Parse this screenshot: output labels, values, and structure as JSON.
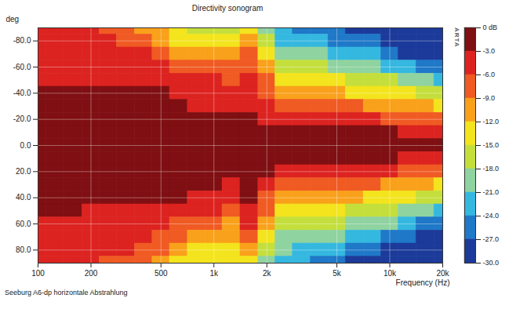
{
  "chart_data": {
    "type": "heatmap",
    "title": "Directivity sonogram",
    "x_label": "Frequency (Hz)",
    "y_label": "deg",
    "log": "x",
    "grid": true,
    "xlim": [
      100,
      20000
    ],
    "xticks": [
      100,
      200,
      500,
      {
        "value": 1000,
        "label": "1k"
      },
      {
        "value": 2000,
        "label": "2k"
      },
      {
        "value": 5000,
        "label": "5k"
      },
      {
        "value": 10000,
        "label": "10k"
      },
      {
        "value": 20000,
        "label": "20k"
      }
    ],
    "ylim": [
      -90,
      90
    ],
    "yticks": [
      {
        "value": -80,
        "label": "-80.0"
      },
      {
        "value": -60,
        "label": "-60.0"
      },
      {
        "value": -40,
        "label": "-40.0"
      },
      {
        "value": -20,
        "label": "-20.0"
      },
      {
        "value": 0,
        "label": "0.0"
      },
      {
        "value": 20,
        "label": "20.0"
      },
      {
        "value": 40,
        "label": "40.0"
      },
      {
        "value": 60,
        "label": "60.0"
      },
      {
        "value": 80,
        "label": "80.0"
      }
    ],
    "x": [
      100,
      125,
      160,
      200,
      250,
      315,
      400,
      500,
      630,
      800,
      1000,
      1250,
      1600,
      2000,
      2500,
      3150,
      4000,
      5000,
      6300,
      8000,
      10000,
      12500,
      16000,
      20000
    ],
    "y": [
      -90,
      -80,
      -70,
      -60,
      -50,
      -40,
      -30,
      -20,
      -10,
      0,
      10,
      20,
      30,
      40,
      50,
      60,
      70,
      80,
      90
    ],
    "cells": [
      [
        -5.5,
        -5.5,
        -5.5,
        -5.5,
        -6.5,
        -7,
        -9.5,
        -11,
        -13,
        -15.5,
        -16,
        -16.5,
        -12.5,
        -19,
        -22,
        -24,
        -25,
        -26,
        -27.5,
        -28.5,
        -29.5,
        -30,
        -30,
        -30
      ],
      [
        -5,
        -5,
        -5,
        -5,
        -5.5,
        -6.5,
        -7,
        -9.5,
        -12.5,
        -13,
        -13.5,
        -13.5,
        -9.5,
        -16,
        -21,
        -22,
        -23,
        -24,
        -25.5,
        -26.5,
        -28,
        -29.5,
        -30,
        -30
      ],
      [
        -4.5,
        -4.5,
        -4.5,
        -4.5,
        -5,
        -5,
        -5.5,
        -7,
        -9.5,
        -10.5,
        -10,
        -11,
        -7,
        -13,
        -18.5,
        -19.5,
        -20,
        -21,
        -22.5,
        -23.5,
        -25,
        -27,
        -28.5,
        -29.5
      ],
      [
        -4,
        -4,
        -4,
        -4,
        -4.5,
        -4.5,
        -5,
        -5.5,
        -6.5,
        -7.5,
        -7,
        -8,
        -6,
        -10,
        -15.5,
        -16.5,
        -17,
        -18,
        -19,
        -20,
        -21,
        -23,
        -25,
        -26.5
      ],
      [
        -3.5,
        -3.5,
        -3.5,
        -3.5,
        -4,
        -4,
        -4,
        -4.5,
        -5,
        -5.5,
        -5.5,
        -6,
        -5,
        -8,
        -12.5,
        -13,
        -13.5,
        -14,
        -15.5,
        -16,
        -17,
        -19,
        -20.5,
        -22
      ],
      [
        -2.5,
        -2.5,
        -2.5,
        -2.5,
        -2.5,
        -2.5,
        -2.5,
        -2.8,
        -4,
        -4.5,
        -4.5,
        -5,
        -4.5,
        -6,
        -9.5,
        -10,
        -10,
        -11,
        -12,
        -12.5,
        -13,
        -14.5,
        -16,
        -17.5
      ],
      [
        -1.5,
        -1.5,
        -1.5,
        -1.5,
        -1.5,
        -1.5,
        -1.5,
        -2,
        -2.5,
        -3.5,
        -3.5,
        -4,
        -3.5,
        -5,
        -6.5,
        -7,
        -7,
        -7.5,
        -8.5,
        -9,
        -9.5,
        -10.5,
        -11.5,
        -12.5
      ],
      [
        -1,
        -1,
        -1,
        -1,
        -1,
        -1,
        -1,
        -1,
        -1.5,
        -2,
        -2,
        -2.5,
        -2,
        -3.5,
        -4,
        -4.5,
        -4.5,
        -5,
        -5.5,
        -5.5,
        -6,
        -6.5,
        -7,
        -8
      ],
      [
        -0.5,
        -0.5,
        -0.5,
        -0.5,
        -0.5,
        -0.5,
        -0.5,
        -0.5,
        -0.5,
        -1,
        -1,
        -1,
        -1,
        -1.5,
        -2,
        -2,
        -2,
        -2.5,
        -2.5,
        -2.5,
        -2.5,
        -3,
        -3,
        -3.5
      ],
      [
        0,
        0,
        0,
        0,
        0,
        0,
        0,
        0,
        0,
        0,
        0,
        0,
        0,
        0,
        0,
        0,
        0,
        0,
        0,
        0,
        0,
        0,
        0,
        0
      ],
      [
        -0.5,
        -0.5,
        -0.5,
        -0.5,
        -0.5,
        -0.5,
        -0.5,
        -0.5,
        -0.5,
        -0.5,
        -0.5,
        -1,
        -0.5,
        -1,
        -2,
        -2,
        -2,
        -2.5,
        -2.5,
        -2.5,
        -2.5,
        -3,
        -3,
        -3.5
      ],
      [
        -1,
        -1,
        -1,
        -1,
        -1,
        -1,
        -1,
        -1,
        -1,
        -1.5,
        -1.5,
        -2,
        -1,
        -2.5,
        -4,
        -4,
        -4.5,
        -5,
        -5,
        -5.5,
        -5.5,
        -6.5,
        -7,
        -7.5
      ],
      [
        -1.5,
        -1.5,
        -1.5,
        -1.5,
        -1.5,
        -1.5,
        -1.5,
        -1.5,
        -2,
        -2.5,
        -2.5,
        -3.5,
        -2,
        -4.5,
        -6.5,
        -7,
        -7,
        -7.5,
        -8,
        -8.5,
        -9,
        -10,
        -11,
        -12
      ],
      [
        -2,
        -2,
        -2,
        -2,
        -2.5,
        -2.5,
        -2.5,
        -2.5,
        -2.8,
        -4,
        -4,
        -5,
        -2.5,
        -6,
        -9.5,
        -10,
        -10,
        -10.5,
        -11.5,
        -12,
        -12.5,
        -14,
        -15.5,
        -17
      ],
      [
        -2.5,
        -2.5,
        -2.5,
        -3,
        -3.5,
        -3.5,
        -4,
        -4,
        -4.5,
        -5,
        -5.5,
        -6.5,
        -3,
        -8,
        -12.5,
        -13,
        -13.5,
        -14,
        -15,
        -15.5,
        -16.5,
        -18.5,
        -20,
        -21.5
      ],
      [
        -3.5,
        -3.5,
        -3.5,
        -4,
        -4.5,
        -4.5,
        -4.5,
        -5,
        -6,
        -7,
        -7.5,
        -9,
        -4.5,
        -11,
        -15.5,
        -16,
        -16.5,
        -17.5,
        -18.5,
        -19.5,
        -20.5,
        -22.5,
        -24.5,
        -26
      ],
      [
        -4,
        -4,
        -4,
        -4.5,
        -5,
        -5,
        -5.5,
        -6.5,
        -8,
        -9.5,
        -10,
        -11,
        -7,
        -14,
        -18,
        -19,
        -19.5,
        -20.5,
        -22,
        -23,
        -24.5,
        -26.5,
        -28,
        -29
      ],
      [
        -4.5,
        -4.5,
        -4.5,
        -5,
        -5.5,
        -5.5,
        -6.5,
        -7.5,
        -10,
        -12.5,
        -12.5,
        -13,
        -10.5,
        -17,
        -20,
        -21.5,
        -22,
        -23,
        -25,
        -26,
        -27.5,
        -29,
        -30,
        -30
      ],
      [
        -5,
        -5,
        -5,
        -5.5,
        -6,
        -6.5,
        -7,
        -9.5,
        -12.5,
        -13.5,
        -13.5,
        -14,
        -13,
        -19,
        -22,
        -23,
        -24,
        -25,
        -27,
        -28,
        -29,
        -30,
        -30,
        -30
      ]
    ],
    "colorbar": {
      "range": [
        -30,
        0
      ],
      "ticks": [
        {
          "value": 0,
          "label": "0 dB"
        },
        {
          "value": -3,
          "label": "-3.0"
        },
        {
          "value": -6,
          "label": "-6.0"
        },
        {
          "value": -9,
          "label": "-9.0"
        },
        {
          "value": -12,
          "label": "-12.0"
        },
        {
          "value": -15,
          "label": "-15.0"
        },
        {
          "value": -18,
          "label": "-18.0"
        },
        {
          "value": -21,
          "label": "-21.0"
        },
        {
          "value": -24,
          "label": "-24.0"
        },
        {
          "value": -27,
          "label": "-27.0"
        },
        {
          "value": -30,
          "label": "-30.0"
        }
      ],
      "colors": [
        "#7f0f12",
        "#dc2320",
        "#f05a23",
        "#f9a11b",
        "#f3e41d",
        "#c4df3c",
        "#8fd3a0",
        "#35b8e0",
        "#1f78c8",
        "#1c3a9a"
      ]
    },
    "logo": "ARTA",
    "caption": "Seeburg A6-dp horizontale Abstrahlung"
  }
}
